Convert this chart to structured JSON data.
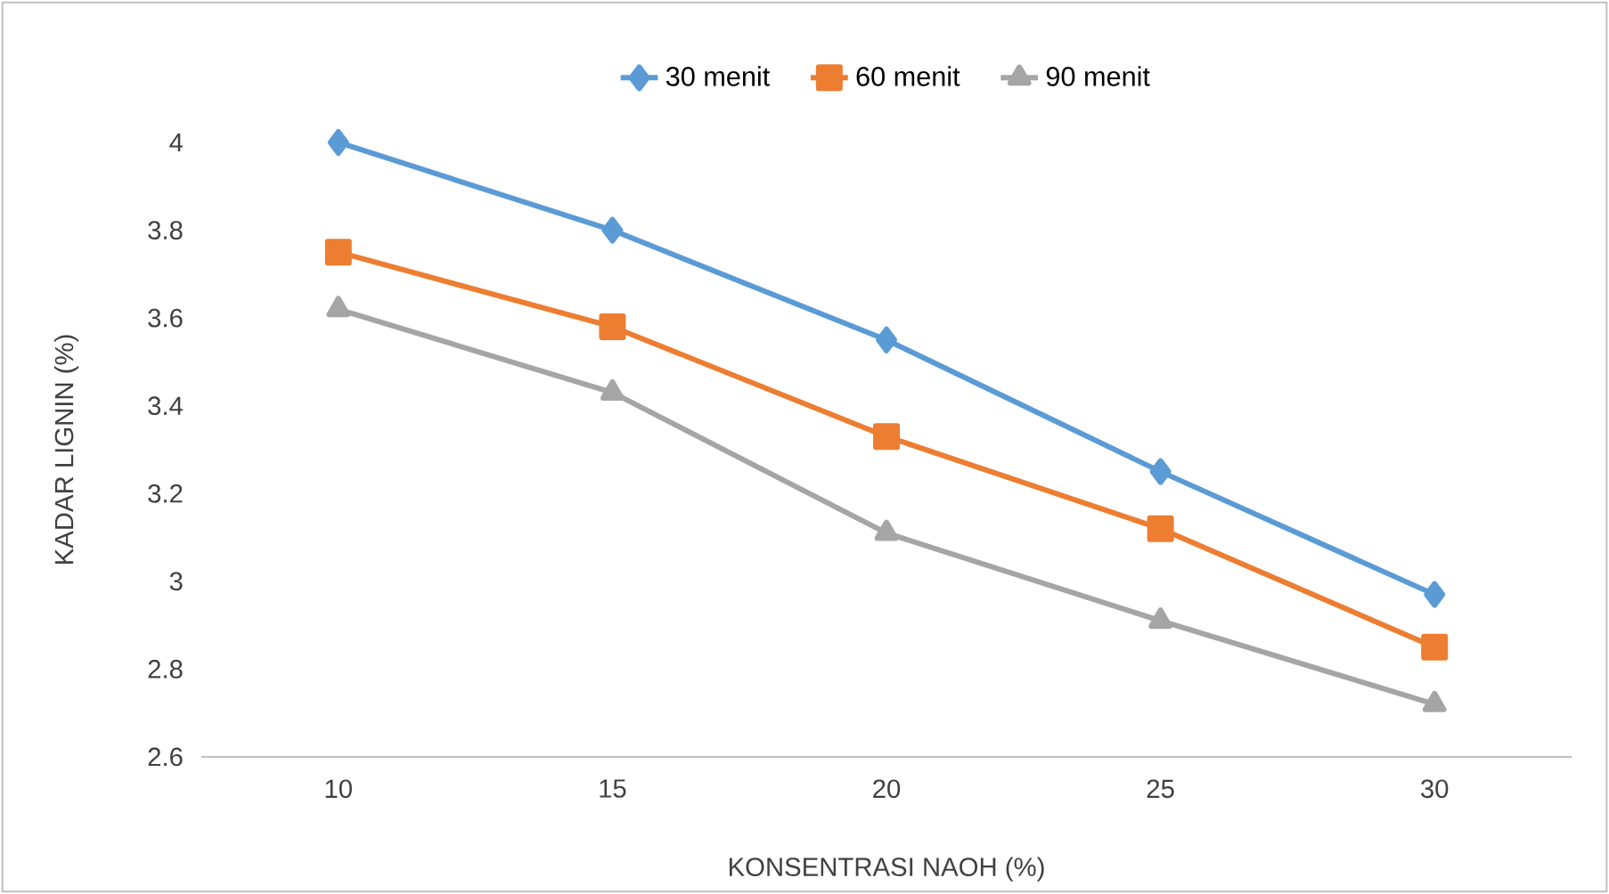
{
  "chart_data": {
    "type": "line",
    "xlabel": "KONSENTRASI NAOH (%)",
    "ylabel": "KADAR LIGNIN (%)",
    "categories": [
      "10",
      "15",
      "20",
      "25",
      "30"
    ],
    "series": [
      {
        "name": "30 menit",
        "color": "#5b9bd5",
        "marker": "diamond",
        "values": [
          4.0,
          3.8,
          3.55,
          3.25,
          2.97
        ]
      },
      {
        "name": "60 menit",
        "color": "#ed7d31",
        "marker": "square",
        "values": [
          3.75,
          3.58,
          3.33,
          3.12,
          2.85
        ]
      },
      {
        "name": "90 menit",
        "color": "#a5a5a5",
        "marker": "triangle",
        "values": [
          3.62,
          3.43,
          3.11,
          2.91,
          2.72
        ]
      }
    ],
    "ylim": [
      2.6,
      4
    ],
    "yticks": [
      2.6,
      2.8,
      3,
      3.2,
      3.4,
      3.6,
      3.8,
      4
    ],
    "grid": false,
    "legend": "top"
  }
}
